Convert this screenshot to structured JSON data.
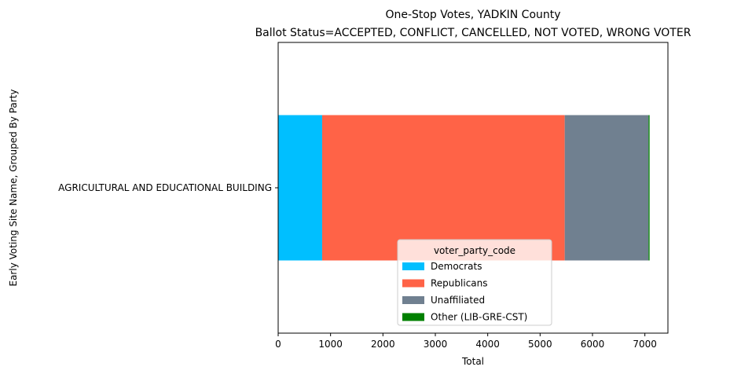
{
  "chart_data": {
    "type": "bar",
    "orientation": "horizontal",
    "stacked": true,
    "title": "One-Stop Votes, YADKIN County",
    "subtitle": "Ballot Status=ACCEPTED, CONFLICT, CANCELLED, NOT VOTED, WRONG VOTER",
    "xlabel": "Total",
    "ylabel": "Early Voting Site Name, Grouped By Party",
    "xlim": [
      0,
      7440
    ],
    "xticks": [
      0,
      1000,
      2000,
      3000,
      4000,
      5000,
      6000,
      7000
    ],
    "categories": [
      "AGRICULTURAL AND EDUCATIONAL BUILDING"
    ],
    "series": [
      {
        "name": "Democrats",
        "color": "#00BFFF",
        "values": [
          840
        ]
      },
      {
        "name": "Republicans",
        "color": "#FF6347",
        "values": [
          4630
        ]
      },
      {
        "name": "Unaffiliated",
        "color": "#708090",
        "values": [
          1600
        ]
      },
      {
        "name": "Other (LIB-GRE-CST)",
        "color": "#008000",
        "values": [
          20
        ]
      }
    ],
    "legend": {
      "title": "voter_party_code",
      "position": "lower-center"
    },
    "grid": false
  }
}
